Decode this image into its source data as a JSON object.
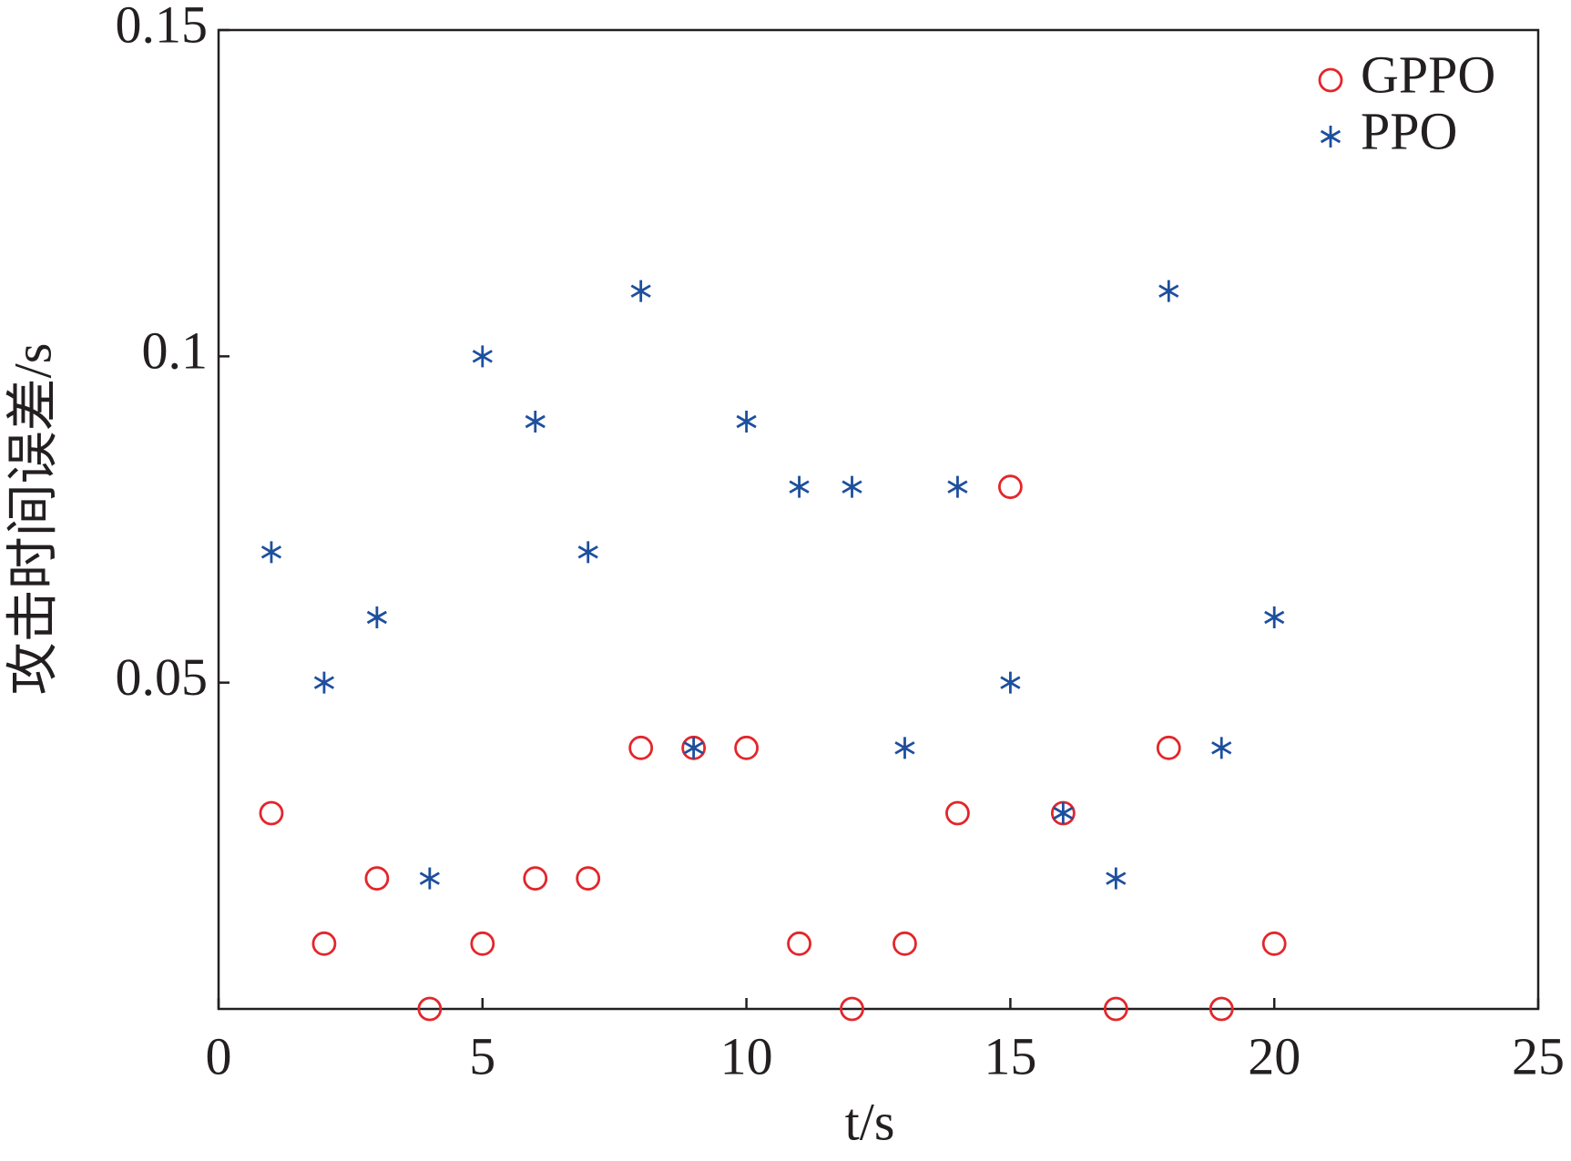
{
  "chart_data": {
    "type": "scatter",
    "xlabel": "t/s",
    "ylabel": "攻击时间误差/s",
    "xlim": [
      0,
      25
    ],
    "xticks": [
      0,
      5,
      10,
      15,
      20,
      25
    ],
    "ylim": [
      0,
      0.15
    ],
    "yticks": [
      0.05,
      0.1,
      0.15
    ],
    "legend": "upper right",
    "grid": false,
    "series": [
      {
        "name": "GPPO",
        "color": "#e3262b",
        "marker": "circle",
        "x": [
          1,
          2,
          3,
          4,
          5,
          6,
          7,
          8,
          9,
          10,
          11,
          12,
          13,
          14,
          15,
          16,
          17,
          18,
          19,
          20
        ],
        "values": [
          0.03,
          0.01,
          0.02,
          0,
          0.01,
          0.02,
          0.02,
          0.04,
          0.04,
          0.04,
          0.01,
          0,
          0.01,
          0.03,
          0.08,
          0.03,
          0,
          0.04,
          0,
          0.01
        ]
      },
      {
        "name": "PPO",
        "color": "#1d4f9e",
        "marker": "asterisk",
        "x": [
          1,
          2,
          3,
          4,
          5,
          6,
          7,
          8,
          9,
          10,
          11,
          12,
          13,
          14,
          15,
          16,
          17,
          18,
          19,
          20
        ],
        "values": [
          0.07,
          0.05,
          0.06,
          0.02,
          0.1,
          0.09,
          0.07,
          0.11,
          0.04,
          0.09,
          0.08,
          0.08,
          0.04,
          0.08,
          0.05,
          0.03,
          0.02,
          0.11,
          0.04,
          0.06
        ]
      }
    ]
  }
}
